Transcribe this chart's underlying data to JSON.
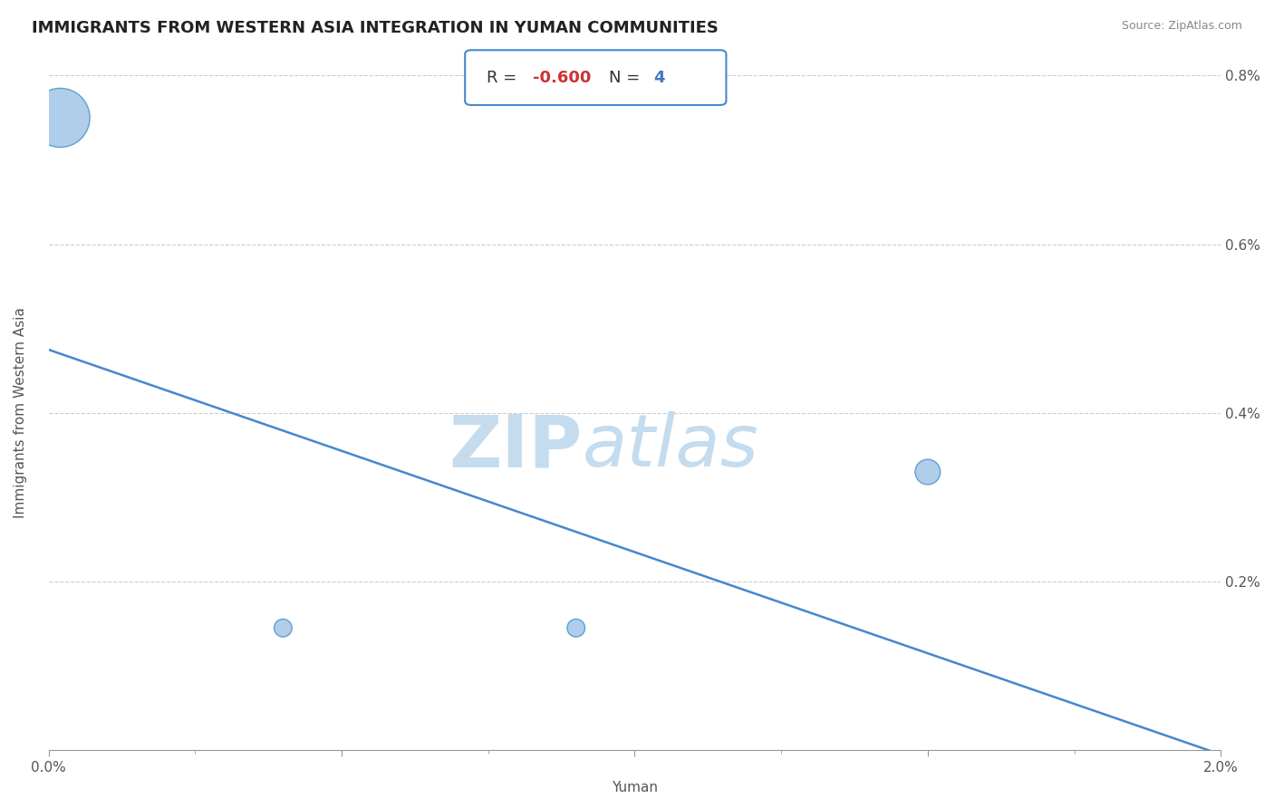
{
  "title": "IMMIGRANTS FROM WESTERN ASIA INTEGRATION IN YUMAN COMMUNITIES",
  "source_text": "Source: ZipAtlas.com",
  "xlabel": "Yuman",
  "ylabel": "Immigrants from Western Asia",
  "R": -0.6,
  "N": 4,
  "scatter_x": [
    0.0002,
    0.004,
    0.009,
    0.015
  ],
  "scatter_y": [
    0.0075,
    0.00145,
    0.00145,
    0.0033
  ],
  "scatter_sizes": [
    2200,
    200,
    200,
    400
  ],
  "scatter_color": "#a8c8e8",
  "scatter_edge_color": "#5599cc",
  "line_color": "#4488cc",
  "line_x": [
    0.0,
    0.02
  ],
  "line_y": [
    0.00475,
    -5e-05
  ],
  "xlim": [
    0.0,
    0.02
  ],
  "ylim": [
    0.0,
    0.008
  ],
  "xticks": [
    0.0,
    0.005,
    0.01,
    0.015,
    0.02
  ],
  "xtick_labels": [
    "0.0%",
    "",
    "",
    "",
    "2.0%"
  ],
  "yticks": [
    0.0,
    0.002,
    0.004,
    0.006,
    0.008
  ],
  "ytick_labels": [
    "",
    "0.2%",
    "0.4%",
    "0.6%",
    "0.8%"
  ],
  "grid_color": "#cccccc",
  "background_color": "#ffffff",
  "title_fontsize": 13,
  "watermark_color": "#c5dcee",
  "R_color": "#cc3333",
  "N_color": "#4477bb",
  "label_color": "#555555"
}
